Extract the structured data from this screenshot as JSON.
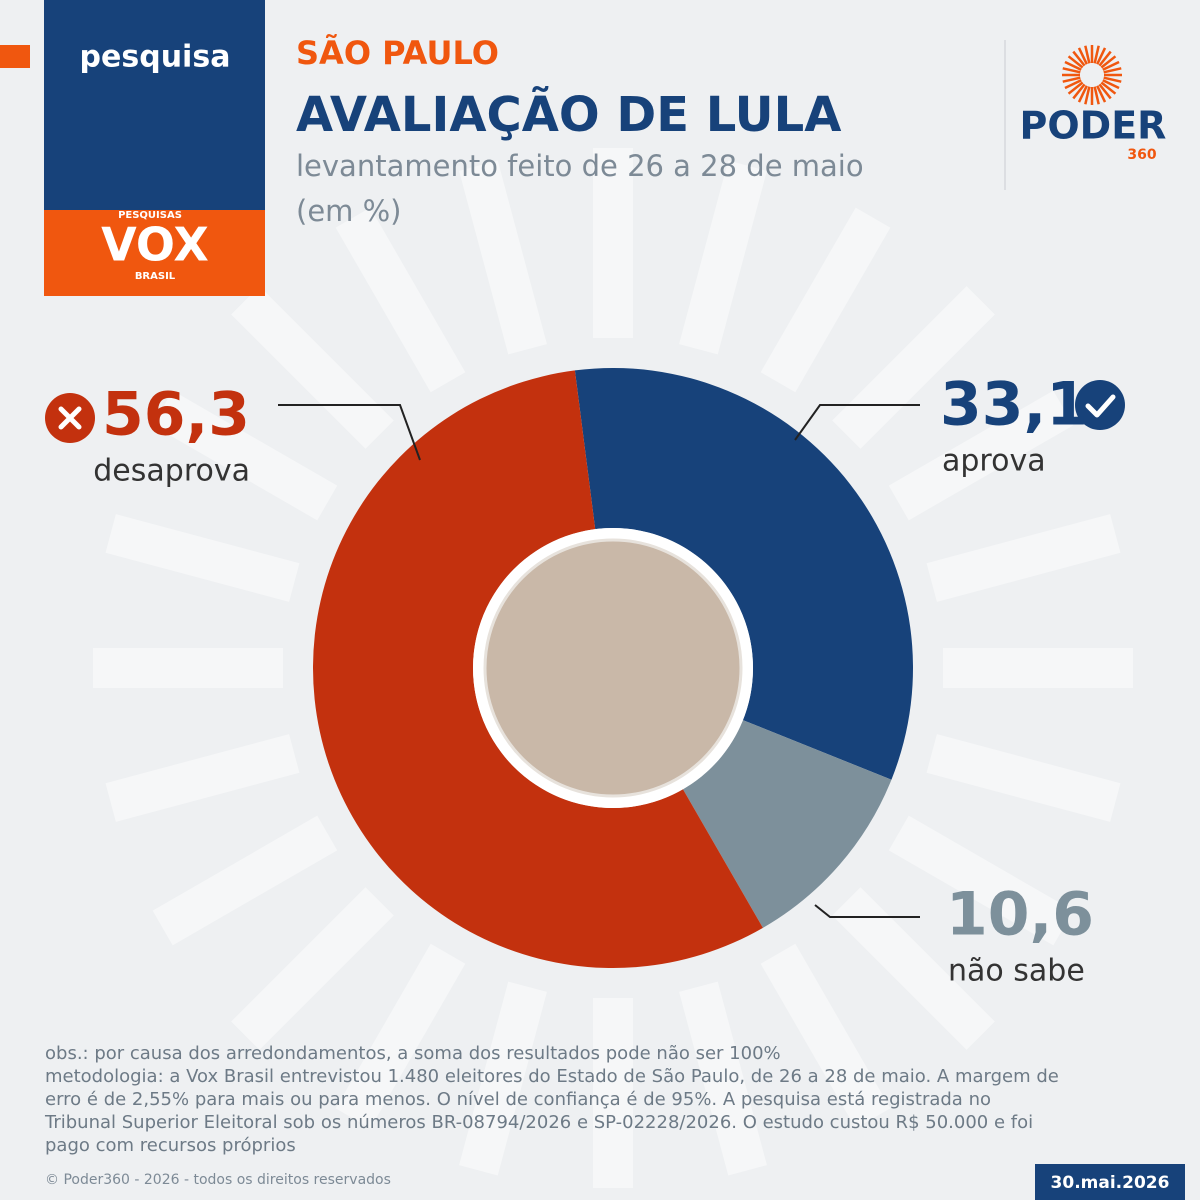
{
  "header": {
    "tag": "pesquisa",
    "region": "SÃO PAULO",
    "title": "AVALIAÇÃO DE LULA",
    "subtitle": "levantamento feito de 26 a 28 de maio",
    "unit": "(em %)"
  },
  "logos": {
    "vox_top": "PESQUISAS",
    "vox": "VOX",
    "vox_bottom": "BRASIL",
    "poder": "PODER",
    "poder_sub": "360"
  },
  "chart_data": {
    "type": "pie",
    "donut": true,
    "categories": [
      "aprova",
      "não sabe",
      "desaprova"
    ],
    "values": [
      33.1,
      10.6,
      56.3
    ],
    "value_labels": [
      "33,1",
      "10,6",
      "56,3"
    ],
    "colors": [
      "#17427a",
      "#7d909b",
      "#c3310e"
    ]
  },
  "footer": {
    "notes": [
      "obs.: por causa dos arredondamentos, a soma dos resultados pode não ser 100%",
      "metodologia: a Vox Brasil entrevistou 1.480 eleitores do Estado de São Paulo, de 26 a 28 de maio. A margem de",
      "erro é de 2,55% para mais ou para menos. O nível de confiança é de 95%. A pesquisa está registrada no",
      "Tribunal Superior Eleitoral sob os números BR-08794/2026 e SP-02228/2026. O estudo custou R$ 50.000 e foi",
      "pago com recursos próprios"
    ],
    "copyright": "© Poder360 - 2026 - todos os direitos reservados",
    "date": "30.mai.2026"
  }
}
